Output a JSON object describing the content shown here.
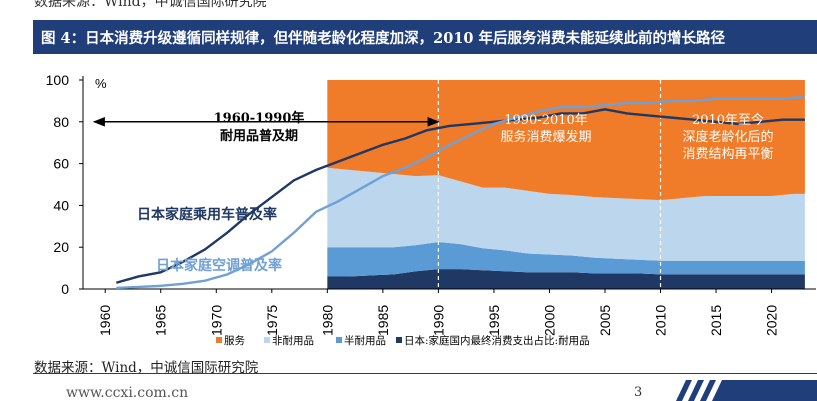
{
  "header": {
    "source_top": "数据来源：Wind，中诚信国际研究院",
    "figure_title": "图 4：日本消费升级遵循同样规律，但伴随老龄化程度加深，2010 年后服务消费未能延续此前的增长路径"
  },
  "footer": {
    "source": "数据来源：Wind，中诚信国际研究院",
    "website": "www.ccxi.com.cn",
    "page_number": "3"
  },
  "colors": {
    "services": "#f07b28",
    "nondurables": "#bcd6ee",
    "semidurables": "#5b9bd5",
    "durables": "#1f3864",
    "car_line": "#1f3864",
    "ac_line": "#6fa0d6",
    "title_bar": "#1f3e7a"
  },
  "chart_data": {
    "type": "area",
    "ylabel": "%",
    "ylim": [
      0,
      100
    ],
    "yticks": [
      0,
      20,
      40,
      60,
      80,
      100
    ],
    "xlim": [
      1958,
      2024
    ],
    "xticks": [
      1960,
      1965,
      1970,
      1975,
      1980,
      1985,
      1990,
      1995,
      2000,
      2005,
      2010,
      2015,
      2020
    ],
    "stacked_areas": {
      "x": [
        1980,
        1982,
        1984,
        1986,
        1988,
        1990,
        1992,
        1994,
        1996,
        1998,
        2000,
        2002,
        2004,
        2006,
        2008,
        2010,
        2012,
        2014,
        2016,
        2018,
        2020,
        2022,
        2023
      ],
      "series": [
        {
          "name": "日本:家庭国内最终消费支出占比:耐用品",
          "key": "durables",
          "values": [
            6,
            6,
            6.5,
            7,
            8.5,
            9.5,
            9.5,
            9,
            8.5,
            8,
            8,
            8,
            7.5,
            7.5,
            7.5,
            7,
            7,
            7,
            7,
            7,
            7,
            7,
            7
          ]
        },
        {
          "name": "半耐用品",
          "key": "semidurables",
          "values": [
            14,
            14,
            13.5,
            13,
            12.5,
            13,
            12,
            10.5,
            10,
            9,
            8.5,
            8,
            7.5,
            7,
            6.5,
            6.5,
            6.5,
            6.5,
            6.5,
            6.5,
            6.5,
            6.5,
            6.5
          ]
        },
        {
          "name": "非耐用品",
          "key": "nondurables",
          "values": [
            38,
            37,
            36,
            35,
            33,
            32,
            30,
            29,
            30,
            30,
            29,
            29,
            29,
            29,
            29,
            29,
            30,
            31,
            31,
            31,
            31,
            32,
            32
          ]
        },
        {
          "name": "服务",
          "key": "services",
          "values": [
            42,
            43,
            44,
            45,
            46,
            45.5,
            48.5,
            51.5,
            51.5,
            53,
            54.5,
            55,
            56,
            56.5,
            57,
            57.5,
            56.5,
            55.5,
            55.5,
            55.5,
            55.5,
            54.5,
            54.5
          ]
        }
      ]
    },
    "lines": [
      {
        "name": "日本家庭乘用车普及率",
        "key": "car_line",
        "x": [
          1961,
          1963,
          1965,
          1967,
          1969,
          1971,
          1973,
          1975,
          1977,
          1979,
          1981,
          1983,
          1985,
          1987,
          1989,
          1991,
          1993,
          1995,
          1997,
          1999,
          2001,
          2003,
          2005,
          2007,
          2009,
          2011,
          2013,
          2015,
          2017,
          2019,
          2021,
          2023
        ],
        "y": [
          3,
          6,
          8,
          13,
          19,
          27,
          36,
          44,
          52,
          57,
          61,
          65,
          69,
          72,
          76,
          78,
          79,
          80,
          81,
          82,
          84,
          84,
          86,
          84,
          83,
          82,
          81,
          80,
          79,
          80,
          81,
          81
        ]
      },
      {
        "name": "日本家庭空调普及率",
        "key": "ac_line",
        "x": [
          1961,
          1963,
          1965,
          1967,
          1969,
          1971,
          1973,
          1975,
          1977,
          1979,
          1981,
          1983,
          1985,
          1987,
          1989,
          1991,
          1993,
          1995,
          1997,
          1999,
          2001,
          2003,
          2005,
          2007,
          2009,
          2011,
          2013,
          2015,
          2017,
          2019,
          2021,
          2023
        ],
        "y": [
          0.5,
          1,
          1.5,
          2.5,
          4,
          7,
          12,
          18,
          27,
          37,
          42,
          48,
          54,
          58,
          63,
          69,
          74,
          79,
          82,
          85,
          87,
          87,
          88,
          89,
          89,
          90,
          90,
          91,
          91,
          91,
          91,
          92
        ]
      }
    ],
    "period_lines": [
      1990,
      2010
    ],
    "annotations": [
      {
        "line1": "1960-1990年",
        "line2": "耐用品普及期"
      },
      {
        "line1": "1990-2010年",
        "line2": "服务消费爆发期"
      },
      {
        "line1": "2010年至今",
        "line2": "深度老龄化后的",
        "line3": "消费结构再平衡"
      }
    ],
    "line_labels": [
      "日本家庭乘用车普及率",
      "日本家庭空调普及率"
    ],
    "legend": [
      "服务",
      "非耐用品",
      "半耐用品",
      "日本:家庭国内最终消费支出占比:耐用品"
    ],
    "legend_position": "bottom"
  }
}
